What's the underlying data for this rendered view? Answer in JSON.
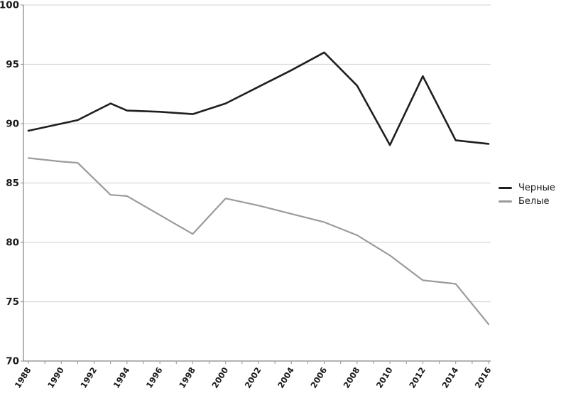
{
  "chart_data": {
    "type": "line",
    "title": "",
    "xlabel": "",
    "ylabel": "",
    "x_axis": {
      "range": [
        1988,
        2016
      ],
      "tick_label_years": [
        1988,
        1990,
        1992,
        1994,
        1996,
        1998,
        2000,
        2002,
        2004,
        2006,
        2008,
        2010,
        2012,
        2014,
        2016
      ],
      "minor_tick_every_years": 1,
      "tick_label_rotation_deg": -58
    },
    "y_axis": {
      "range": [
        70,
        100
      ],
      "ticks": [
        70,
        75,
        80,
        85,
        90,
        95,
        100
      ]
    },
    "grid": "horizontal",
    "legend_position": "right",
    "series": [
      {
        "name": "Черные",
        "color": "#1f1f1f",
        "stroke_width": 2.6,
        "points": [
          [
            1988,
            89.4
          ],
          [
            1990,
            90.0
          ],
          [
            1991,
            90.3
          ],
          [
            1993,
            91.7
          ],
          [
            1994,
            91.1
          ],
          [
            1996,
            91.0
          ],
          [
            1998,
            90.8
          ],
          [
            2000,
            91.7
          ],
          [
            2002,
            93.1
          ],
          [
            2004,
            94.5
          ],
          [
            2006,
            96.0
          ],
          [
            2008,
            93.2
          ],
          [
            2010,
            88.2
          ],
          [
            2012,
            94.0
          ],
          [
            2014,
            88.6
          ],
          [
            2016,
            88.3
          ]
        ]
      },
      {
        "name": "Белые",
        "color": "#9b9b9b",
        "stroke_width": 2.2,
        "points": [
          [
            1988,
            87.1
          ],
          [
            1990,
            86.8
          ],
          [
            1991,
            86.7
          ],
          [
            1993,
            84.0
          ],
          [
            1994,
            83.9
          ],
          [
            1996,
            82.3
          ],
          [
            1998,
            80.7
          ],
          [
            2000,
            83.7
          ],
          [
            2002,
            83.1
          ],
          [
            2004,
            82.4
          ],
          [
            2006,
            81.7
          ],
          [
            2008,
            80.6
          ],
          [
            2010,
            78.9
          ],
          [
            2012,
            76.8
          ],
          [
            2014,
            76.5
          ],
          [
            2016,
            73.1
          ]
        ]
      }
    ],
    "colors": {
      "gridline": "#d9d9d9",
      "axis": "#9c9c9c",
      "tick": "#9c9c9c",
      "axis_label_text": "#1a1a1a"
    }
  }
}
